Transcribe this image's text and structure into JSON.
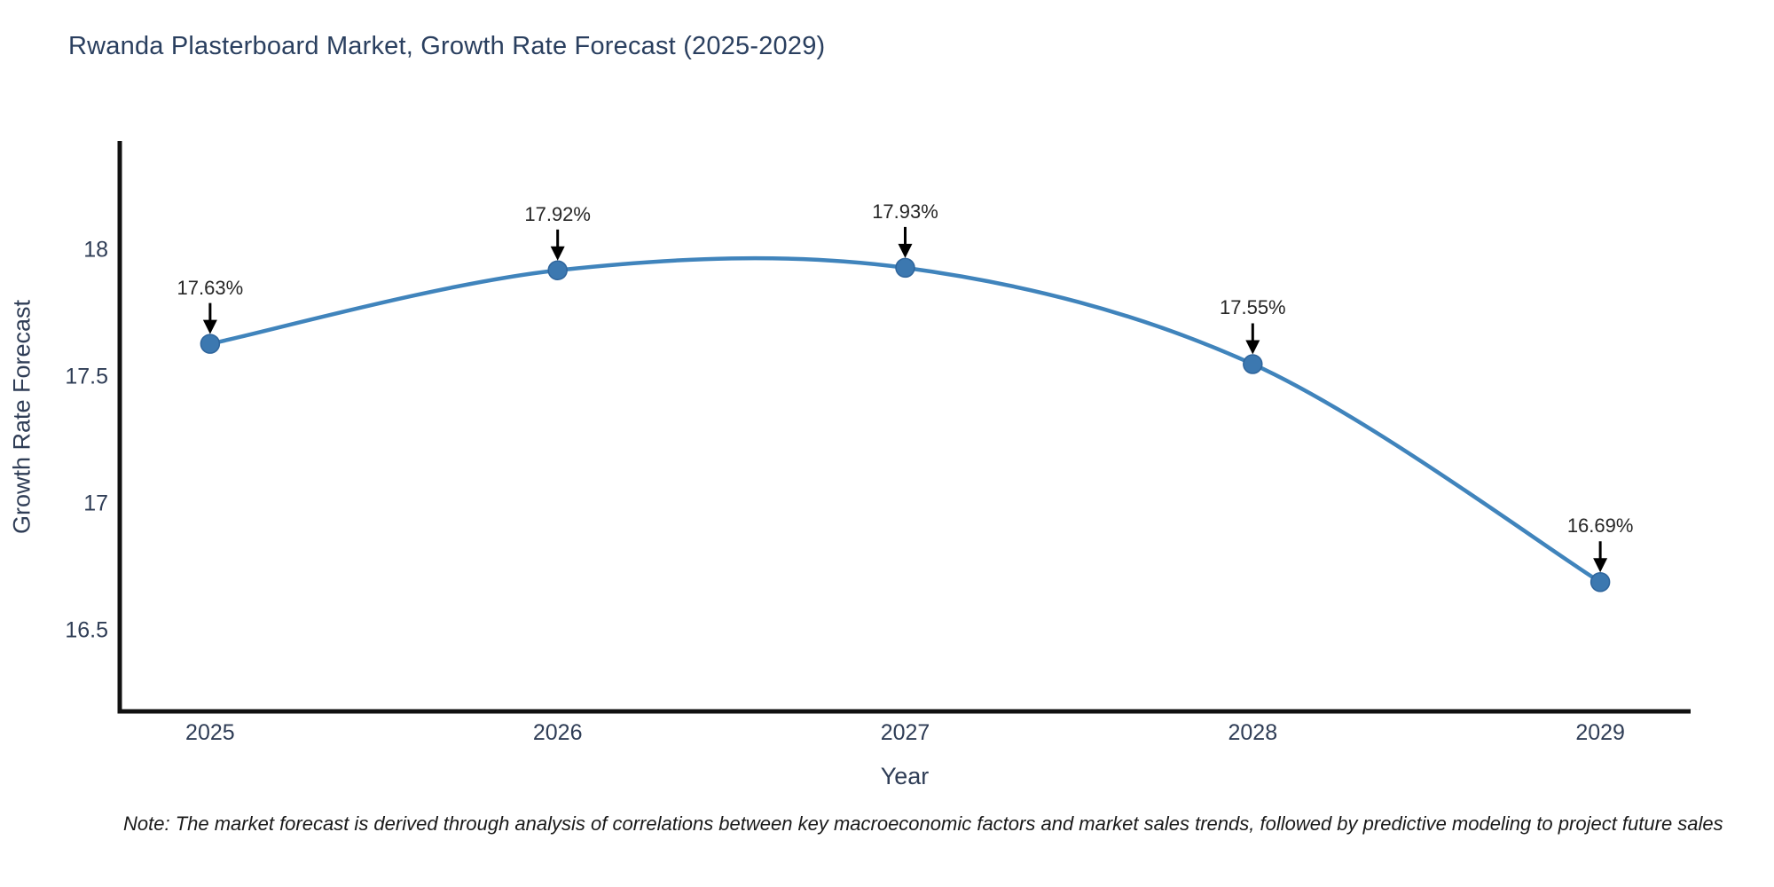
{
  "note": "Note: The market forecast is derived through analysis of correlations between key macroeconomic factors and market sales trends, followed by predictive modeling to project future sales",
  "colors": {
    "line": "#4084bc",
    "marker_fill": "#3c78b0",
    "marker_edge": "#2f659c",
    "axis": "#111111",
    "arrow": "#000000",
    "heading_text": "#2a3f5f"
  },
  "chart_data": {
    "type": "line",
    "title": "Rwanda Plasterboard Market, Growth Rate Forecast (2025-2029)",
    "xlabel": "Year",
    "ylabel": "Growth Rate Forecast",
    "x": [
      2025,
      2026,
      2027,
      2028,
      2029
    ],
    "x_tick_labels": [
      "2025",
      "2026",
      "2027",
      "2028",
      "2029"
    ],
    "values": [
      17.63,
      17.92,
      17.93,
      17.55,
      16.69
    ],
    "point_labels": [
      "17.63%",
      "17.92%",
      "17.93%",
      "17.55%",
      "16.69%"
    ],
    "y_tick_labels": [
      "18",
      "17.5",
      "17",
      "16.5"
    ],
    "y_tick_values": [
      18,
      17.5,
      17,
      16.5
    ],
    "xlim": [
      2024.74,
      2029.26
    ],
    "ylim": [
      16.18,
      18.43
    ],
    "grid": false,
    "legend": null,
    "marker": "circle",
    "annotation_style": "value labels with downward arrows"
  }
}
